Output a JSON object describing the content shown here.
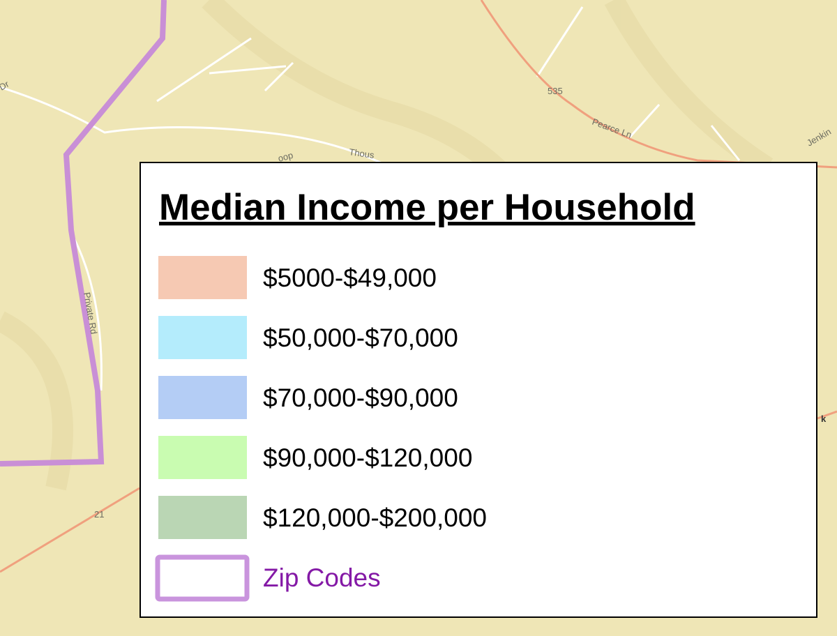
{
  "map": {
    "labels": [
      "535",
      "Pearce Ln",
      "Jenkin",
      "Thous",
      "oop",
      "Private Rd",
      "21",
      "k",
      "Dr"
    ]
  },
  "legend": {
    "title": "Median Income per Household",
    "items": [
      {
        "label": "$5000-$49,000",
        "color": "#f6c9b3"
      },
      {
        "label": "$50,000-$70,000",
        "color": "#b4ecfc"
      },
      {
        "label": "$70,000-$90,000",
        "color": "#b4cdf5"
      },
      {
        "label": "$90,000-$120,000",
        "color": "#c9fcb1"
      },
      {
        "label": "$120,000-$200,000",
        "color": "#bad6b4"
      },
      {
        "label": "Zip Codes",
        "color": "#ffffff",
        "border": "#c994dd",
        "text_color": "#8419a6"
      }
    ]
  }
}
